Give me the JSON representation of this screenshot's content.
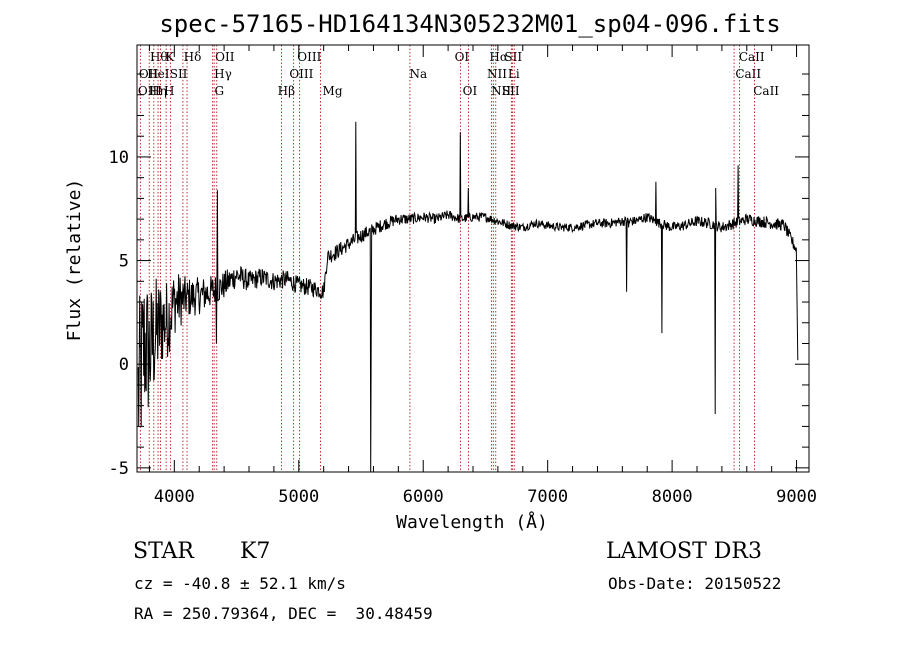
{
  "chart_data": {
    "type": "line",
    "title": "spec-57165-HD164134N305232M01_sp04-096.fits",
    "xlabel": "Wavelength (Å)",
    "ylabel": "Flux (relative)",
    "xlim": [
      3700,
      9100
    ],
    "ylim": [
      -5.2,
      15.4
    ],
    "xticks": [
      4000,
      5000,
      6000,
      7000,
      8000,
      9000
    ],
    "yticks": [
      -5,
      0,
      5,
      10
    ],
    "grid": false,
    "series": [
      {
        "name": "flux",
        "anchors": [
          [
            3700,
            -2.0
          ],
          [
            3760,
            1.0
          ],
          [
            3800,
            0.5
          ],
          [
            3850,
            1.5
          ],
          [
            3900,
            2.0
          ],
          [
            3950,
            2.2
          ],
          [
            4000,
            3.0
          ],
          [
            4100,
            3.2
          ],
          [
            4200,
            3.3
          ],
          [
            4300,
            3.5
          ],
          [
            4400,
            3.8
          ],
          [
            4500,
            4.3
          ],
          [
            4600,
            4.0
          ],
          [
            4700,
            4.2
          ],
          [
            4800,
            4.0
          ],
          [
            4900,
            4.1
          ],
          [
            5000,
            3.8
          ],
          [
            5100,
            3.7
          ],
          [
            5200,
            3.5
          ],
          [
            5230,
            5.2
          ],
          [
            5300,
            5.4
          ],
          [
            5400,
            5.8
          ],
          [
            5500,
            6.2
          ],
          [
            5600,
            6.5
          ],
          [
            5700,
            6.8
          ],
          [
            5800,
            7.0
          ],
          [
            5900,
            7.0
          ],
          [
            6000,
            7.1
          ],
          [
            6100,
            7.0
          ],
          [
            6200,
            7.2
          ],
          [
            6300,
            7.0
          ],
          [
            6400,
            7.1
          ],
          [
            6500,
            7.1
          ],
          [
            6600,
            6.9
          ],
          [
            6700,
            6.7
          ],
          [
            6800,
            6.6
          ],
          [
            6900,
            6.8
          ],
          [
            7000,
            6.7
          ],
          [
            7100,
            6.6
          ],
          [
            7200,
            6.6
          ],
          [
            7300,
            6.7
          ],
          [
            7400,
            6.8
          ],
          [
            7500,
            6.8
          ],
          [
            7600,
            6.9
          ],
          [
            7700,
            6.9
          ],
          [
            7800,
            7.1
          ],
          [
            7900,
            6.8
          ],
          [
            8000,
            6.6
          ],
          [
            8100,
            6.7
          ],
          [
            8200,
            6.9
          ],
          [
            8300,
            6.8
          ],
          [
            8400,
            6.6
          ],
          [
            8500,
            6.8
          ],
          [
            8600,
            7.0
          ],
          [
            8700,
            6.9
          ],
          [
            8800,
            6.8
          ],
          [
            8900,
            6.7
          ],
          [
            9000,
            5.5
          ],
          [
            9010,
            0.2
          ]
        ],
        "noise": [
          [
            3700,
            4.5
          ],
          [
            3900,
            2.2
          ],
          [
            4100,
            1.0
          ],
          [
            4300,
            0.8
          ],
          [
            4600,
            0.5
          ],
          [
            5200,
            0.4
          ],
          [
            6000,
            0.25
          ],
          [
            7000,
            0.2
          ],
          [
            8000,
            0.25
          ],
          [
            9000,
            0.3
          ]
        ],
        "features": [
          [
            4340,
            1.0
          ],
          [
            4345,
            8.4
          ],
          [
            5460,
            11.7
          ],
          [
            5577,
            -5.2
          ],
          [
            5581,
            1.2
          ],
          [
            6300,
            11.2
          ],
          [
            6363,
            8.5
          ],
          [
            7870,
            8.8
          ],
          [
            7920,
            1.5
          ],
          [
            8345,
            -2.4
          ],
          [
            8350,
            8.5
          ],
          [
            8530,
            9.6
          ],
          [
            7635,
            3.5
          ],
          [
            7650,
            6.6
          ]
        ]
      }
    ],
    "line_markers": [
      {
        "name": "Hθ",
        "wl": 3798,
        "row": 0,
        "lx": 3804
      },
      {
        "name": "K",
        "wl": 3934,
        "row": 0,
        "lx": 3927
      },
      {
        "name": "Hδ",
        "wl": 4102,
        "row": 0,
        "lx": 4075
      },
      {
        "name": "OII",
        "wl": 4320,
        "row": 0,
        "lx": 4328
      },
      {
        "name": "OIII",
        "wl": 5007,
        "row": 0,
        "lx": 4988
      },
      {
        "name": "OI",
        "wl": 6300,
        "row": 0,
        "lx": 6252
      },
      {
        "name": "Hα",
        "wl": 6563,
        "row": 0,
        "lx": 6532
      },
      {
        "name": "SII",
        "wl": 6716,
        "row": 0,
        "lx": 6652
      },
      {
        "name": "CaII",
        "wl": 8542,
        "row": 0,
        "lx": 8536
      },
      {
        "name": "OII",
        "wl": 3727,
        "row": 1,
        "lx": 3715
      },
      {
        "name": "HeI",
        "wl": 3889,
        "row": 1,
        "lx": 3782
      },
      {
        "name": "SII",
        "wl": 4069,
        "row": 1,
        "lx": 3963
      },
      {
        "name": "Hγ",
        "wl": 4341,
        "row": 1,
        "lx": 4320
      },
      {
        "name": "OIII",
        "wl": 4959,
        "row": 1,
        "lx": 4924
      },
      {
        "name": "Na",
        "wl": 5893,
        "row": 1,
        "lx": 5890
      },
      {
        "name": "NII",
        "wl": 6548,
        "row": 1,
        "lx": 6513
      },
      {
        "name": "Li",
        "wl": 6708,
        "row": 1,
        "lx": 6680
      },
      {
        "name": "CaII",
        "wl": 8498,
        "row": 1,
        "lx": 8508
      },
      {
        "name": "OIII",
        "wl": 3869,
        "row": 2,
        "lx": 3707
      },
      {
        "name": "Hη",
        "wl": 3835,
        "row": 2,
        "lx": 3798
      },
      {
        "name": "H",
        "wl": 3968,
        "row": 2,
        "lx": 3917
      },
      {
        "name": "G",
        "wl": 4308,
        "row": 2,
        "lx": 4323
      },
      {
        "name": "Hβ",
        "wl": 4861,
        "row": 2,
        "lx": 4830
      },
      {
        "name": "Mg",
        "wl": 5175,
        "row": 2,
        "lx": 5191
      },
      {
        "name": "OI",
        "wl": 6364,
        "row": 2,
        "lx": 6317
      },
      {
        "name": "NII",
        "wl": 6583,
        "row": 2,
        "lx": 6546
      },
      {
        "name": "SII",
        "wl": 6731,
        "row": 2,
        "lx": 6632
      },
      {
        "name": "CaII",
        "wl": 8662,
        "row": 2,
        "lx": 8652
      }
    ]
  },
  "info": {
    "object_class": "STAR",
    "subclass": "K7",
    "survey": "LAMOST DR3",
    "cz": "cz = -40.8 ± 52.1 km/s",
    "obs_date": "Obs-Date: 20150522",
    "coords": "RA = 250.79364, DEC =  30.48459"
  }
}
